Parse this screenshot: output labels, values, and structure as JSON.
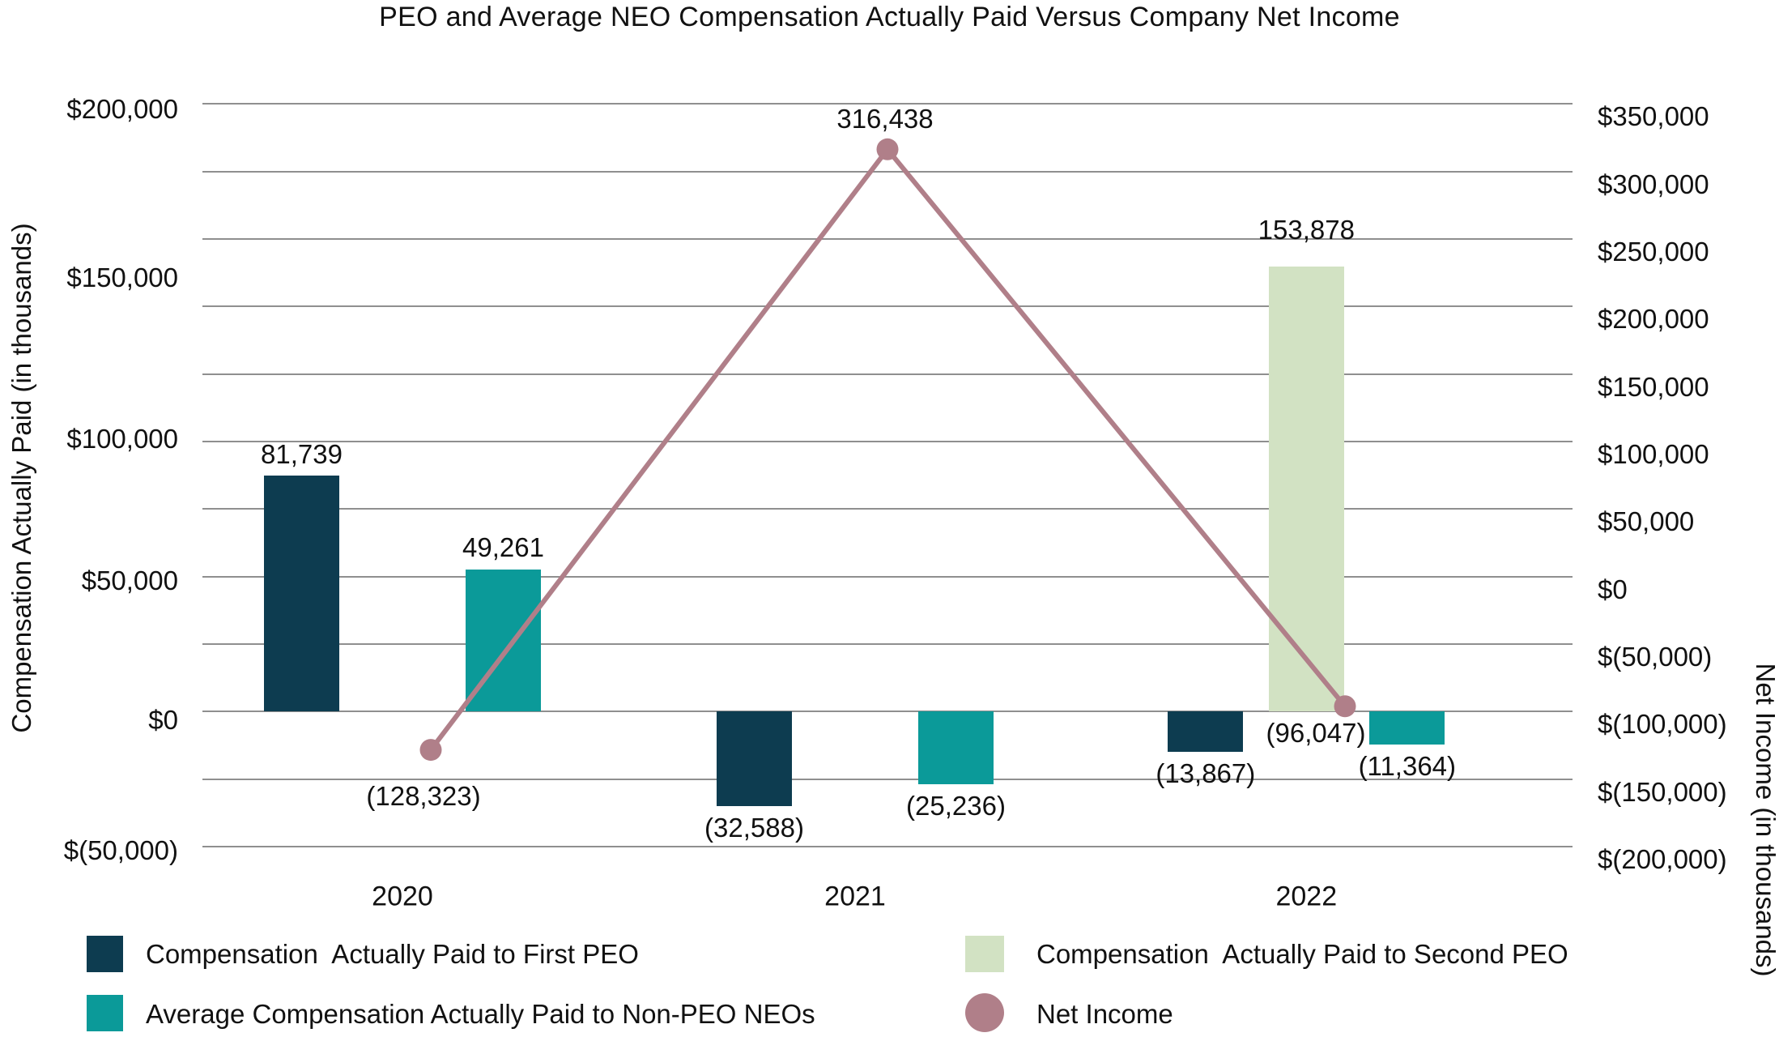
{
  "title": "PEO and Average NEO Compensation Actually Paid Versus Company Net Income",
  "chart_data": {
    "type": "combo-bar-line",
    "categories": [
      "2020",
      "2021",
      "2022"
    ],
    "series": [
      {
        "name": "Compensation  Actually Paid to First PEO",
        "type": "bar",
        "axis": "left",
        "color": "#0d3c50",
        "values": [
          81739,
          -32588,
          -13867
        ],
        "data_labels": [
          "81,739",
          "(32,588)",
          "(13,867)"
        ]
      },
      {
        "name": "Compensation  Actually Paid to Second PEO",
        "type": "bar",
        "axis": "left",
        "color": "#d2e2c3",
        "values": [
          null,
          null,
          153878
        ],
        "data_labels": [
          null,
          null,
          "153,878"
        ]
      },
      {
        "name": "Average Compensation Actually Paid to Non-PEO NEOs",
        "type": "bar",
        "axis": "left",
        "color": "#0b9a99",
        "values": [
          49261,
          -25236,
          -11364
        ],
        "data_labels": [
          "49,261",
          "(25,236)",
          "(11,364)"
        ]
      },
      {
        "name": "Net Income",
        "type": "line",
        "axis": "right",
        "color": "#b07f89",
        "marker_color": "#b07f89",
        "values": [
          -128323,
          316438,
          -96047
        ],
        "data_labels": [
          "(128,323)",
          "316,438",
          "(96,047)"
        ]
      }
    ],
    "left_axis": {
      "title": "Compensation Actually Paid (in thousands)",
      "tick_labels": [
        "$200,000",
        "$150,000",
        "$100,000",
        "$50,000",
        "$0",
        "$(50,000)"
      ],
      "range_thousands": [
        -50000,
        200000
      ]
    },
    "right_axis": {
      "title": "Net Income (in thousands)",
      "tick_labels": [
        "$350,000",
        "$300,000",
        "$250,000",
        "$200,000",
        "$150,000",
        "$100,000",
        "$50,000",
        "$0",
        "$(50,000)",
        "$(100,000)",
        "$(150,000)",
        "$(200,000)"
      ],
      "range_thousands": [
        -200000,
        350000
      ]
    },
    "grid": true,
    "legend_position": "bottom"
  },
  "colors": {
    "first_peo": "#0d3c50",
    "second_peo": "#d2e2c3",
    "non_peo_neos": "#0b9a99",
    "net_income": "#b07f89",
    "gridline": "#8f8f8f",
    "text": "#111111"
  }
}
